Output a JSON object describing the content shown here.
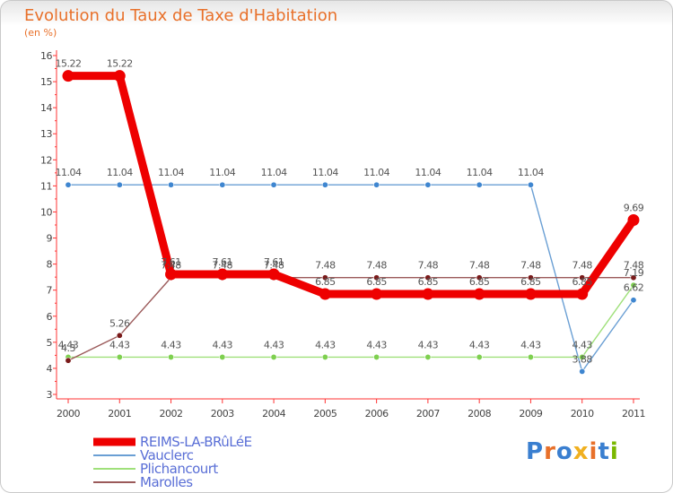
{
  "chart_data": {
    "type": "line",
    "title": "Evolution du Taux de Taxe d'Habitation",
    "subtitle": "(en %)",
    "x": [
      "2000",
      "2001",
      "2002",
      "2003",
      "2004",
      "2005",
      "2006",
      "2007",
      "2008",
      "2009",
      "2010",
      "2011"
    ],
    "ylim": [
      3,
      16
    ],
    "yticks": [
      3,
      4,
      5,
      6,
      7,
      8,
      9,
      10,
      11,
      12,
      13,
      14,
      15,
      16
    ],
    "grid": false,
    "legend_position": "bottom-left",
    "series": [
      {
        "name": "REIMS-LA-BRûLéE",
        "color": "#ee0000",
        "emphasis": true,
        "values": [
          15.22,
          15.22,
          7.61,
          7.61,
          7.61,
          6.85,
          6.85,
          6.85,
          6.85,
          6.85,
          6.85,
          9.69
        ],
        "labels": [
          "15.22",
          "15.22",
          "7.61",
          "7.61",
          "7.61",
          "6.85",
          "6.85",
          "6.85",
          "6.85",
          "6.85",
          "6.85",
          "9.69"
        ]
      },
      {
        "name": "Vauclerc",
        "color": "#6a9fd4",
        "point_color": "#3f86d0",
        "emphasis": false,
        "values": [
          11.04,
          11.04,
          11.04,
          11.04,
          11.04,
          11.04,
          11.04,
          11.04,
          11.04,
          11.04,
          3.88,
          6.62
        ],
        "labels": [
          "11.04",
          "11.04",
          "11.04",
          "11.04",
          "11.04",
          "11.04",
          "11.04",
          "11.04",
          "11.04",
          "11.04",
          "3.88",
          "6.62"
        ]
      },
      {
        "name": "Plichancourt",
        "color": "#9fe07a",
        "point_color": "#7ed04f",
        "emphasis": false,
        "values": [
          4.43,
          4.43,
          4.43,
          4.43,
          4.43,
          4.43,
          4.43,
          4.43,
          4.43,
          4.43,
          4.43,
          7.19
        ],
        "labels": [
          "4.43",
          "4.43",
          "4.43",
          "4.43",
          "4.43",
          "4.43",
          "4.43",
          "4.43",
          "4.43",
          "4.43",
          "4.43",
          "7.19"
        ]
      },
      {
        "name": "Marolles",
        "color": "#9b5a5a",
        "point_color": "#7a1a1a",
        "emphasis": false,
        "values": [
          4.3,
          5.26,
          7.48,
          7.48,
          7.48,
          7.48,
          7.48,
          7.48,
          7.48,
          7.48,
          7.48,
          7.48
        ],
        "labels": [
          "4.3",
          "5.26",
          "7.48",
          "7.48",
          "7.48",
          "7.48",
          "7.48",
          "7.48",
          "7.48",
          "7.48",
          "7.48",
          "7.48"
        ]
      }
    ]
  },
  "brand": {
    "letters": [
      "P",
      "r",
      "o",
      "x",
      "i",
      "t",
      "i"
    ],
    "colors": [
      "#3a7fd0",
      "#e8702a",
      "#3a7fd0",
      "#f0b020",
      "#e8702a",
      "#3a7fd0",
      "#7ab800"
    ]
  }
}
